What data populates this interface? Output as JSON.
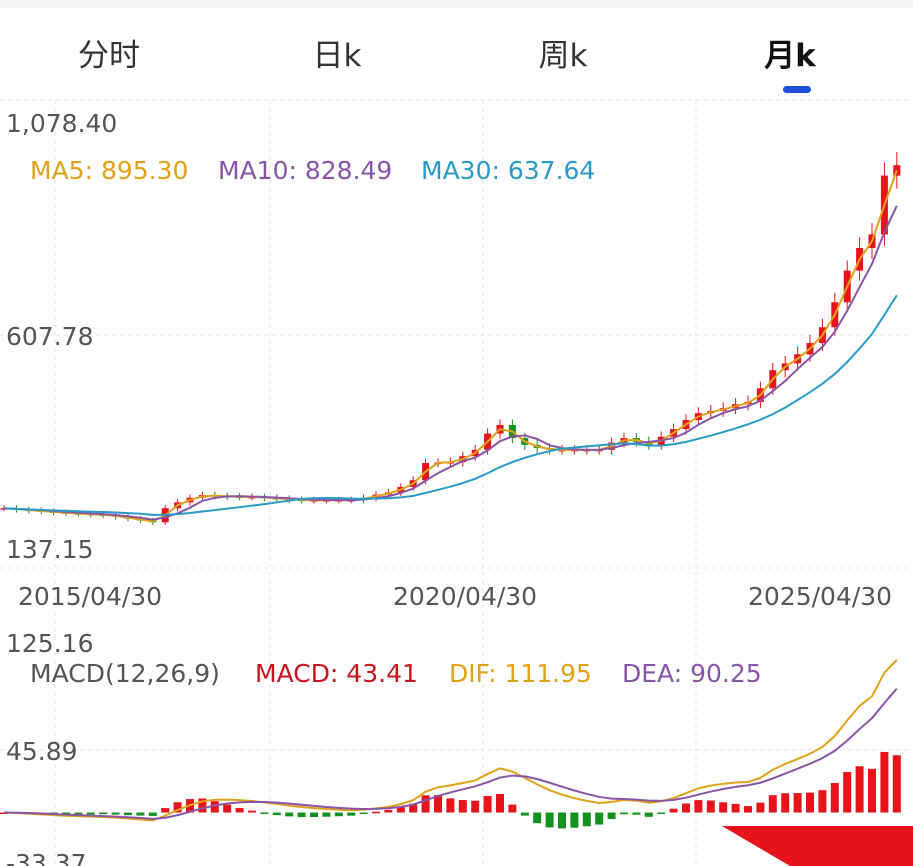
{
  "tabs": [
    {
      "label": "分时"
    },
    {
      "label": "日k"
    },
    {
      "label": "周k"
    },
    {
      "label": "月k",
      "active": true
    }
  ],
  "colors": {
    "up": "#e8141b",
    "down": "#15911f",
    "ma5": "#e0a21a",
    "ma10": "#8a55a8",
    "ma30": "#2a9ac8",
    "dif": "#e0a21a",
    "dea": "#8a55a8",
    "macd": "#c8141e",
    "accent": "#1f4fd6"
  },
  "chart_data": [
    {
      "type": "candlestick",
      "title": "",
      "y_ticks": [
        "1,078.40",
        "607.78",
        "137.15"
      ],
      "ylim": [
        137.15,
        1078.4
      ],
      "x_ticks": [
        "2015/04/30",
        "2020/04/30",
        "2025/04/30"
      ],
      "grid": true,
      "legend": {
        "ma5": "MA5: 895.30",
        "ma10": "MA10: 828.49",
        "ma30": "MA30: 637.64"
      },
      "closes": [
        225,
        222,
        220,
        218,
        216,
        214,
        213,
        211,
        210,
        206,
        202,
        198,
        194,
        225,
        238,
        248,
        254,
        252,
        251,
        250,
        250,
        248,
        246,
        244,
        243,
        243,
        243,
        243,
        243,
        248,
        255,
        260,
        272,
        287,
        325,
        326,
        327,
        340,
        354,
        390,
        409,
        380,
        365,
        358,
        354,
        354,
        354,
        354,
        354,
        370,
        380,
        372,
        365,
        383,
        400,
        420,
        435,
        440,
        446,
        455,
        460,
        490,
        530,
        545,
        565,
        590,
        625,
        680,
        750,
        800,
        830,
        960,
        983
      ]
    },
    {
      "type": "macd",
      "y_ticks": [
        "125.16",
        "45.89",
        "-33.37"
      ],
      "ylim": [
        -33.37,
        125.16
      ],
      "legend": {
        "name": "MACD(12,26,9)",
        "macd": "MACD: 43.41",
        "dif": "DIF: 111.95",
        "dea": "DEA: 90.25"
      }
    }
  ]
}
